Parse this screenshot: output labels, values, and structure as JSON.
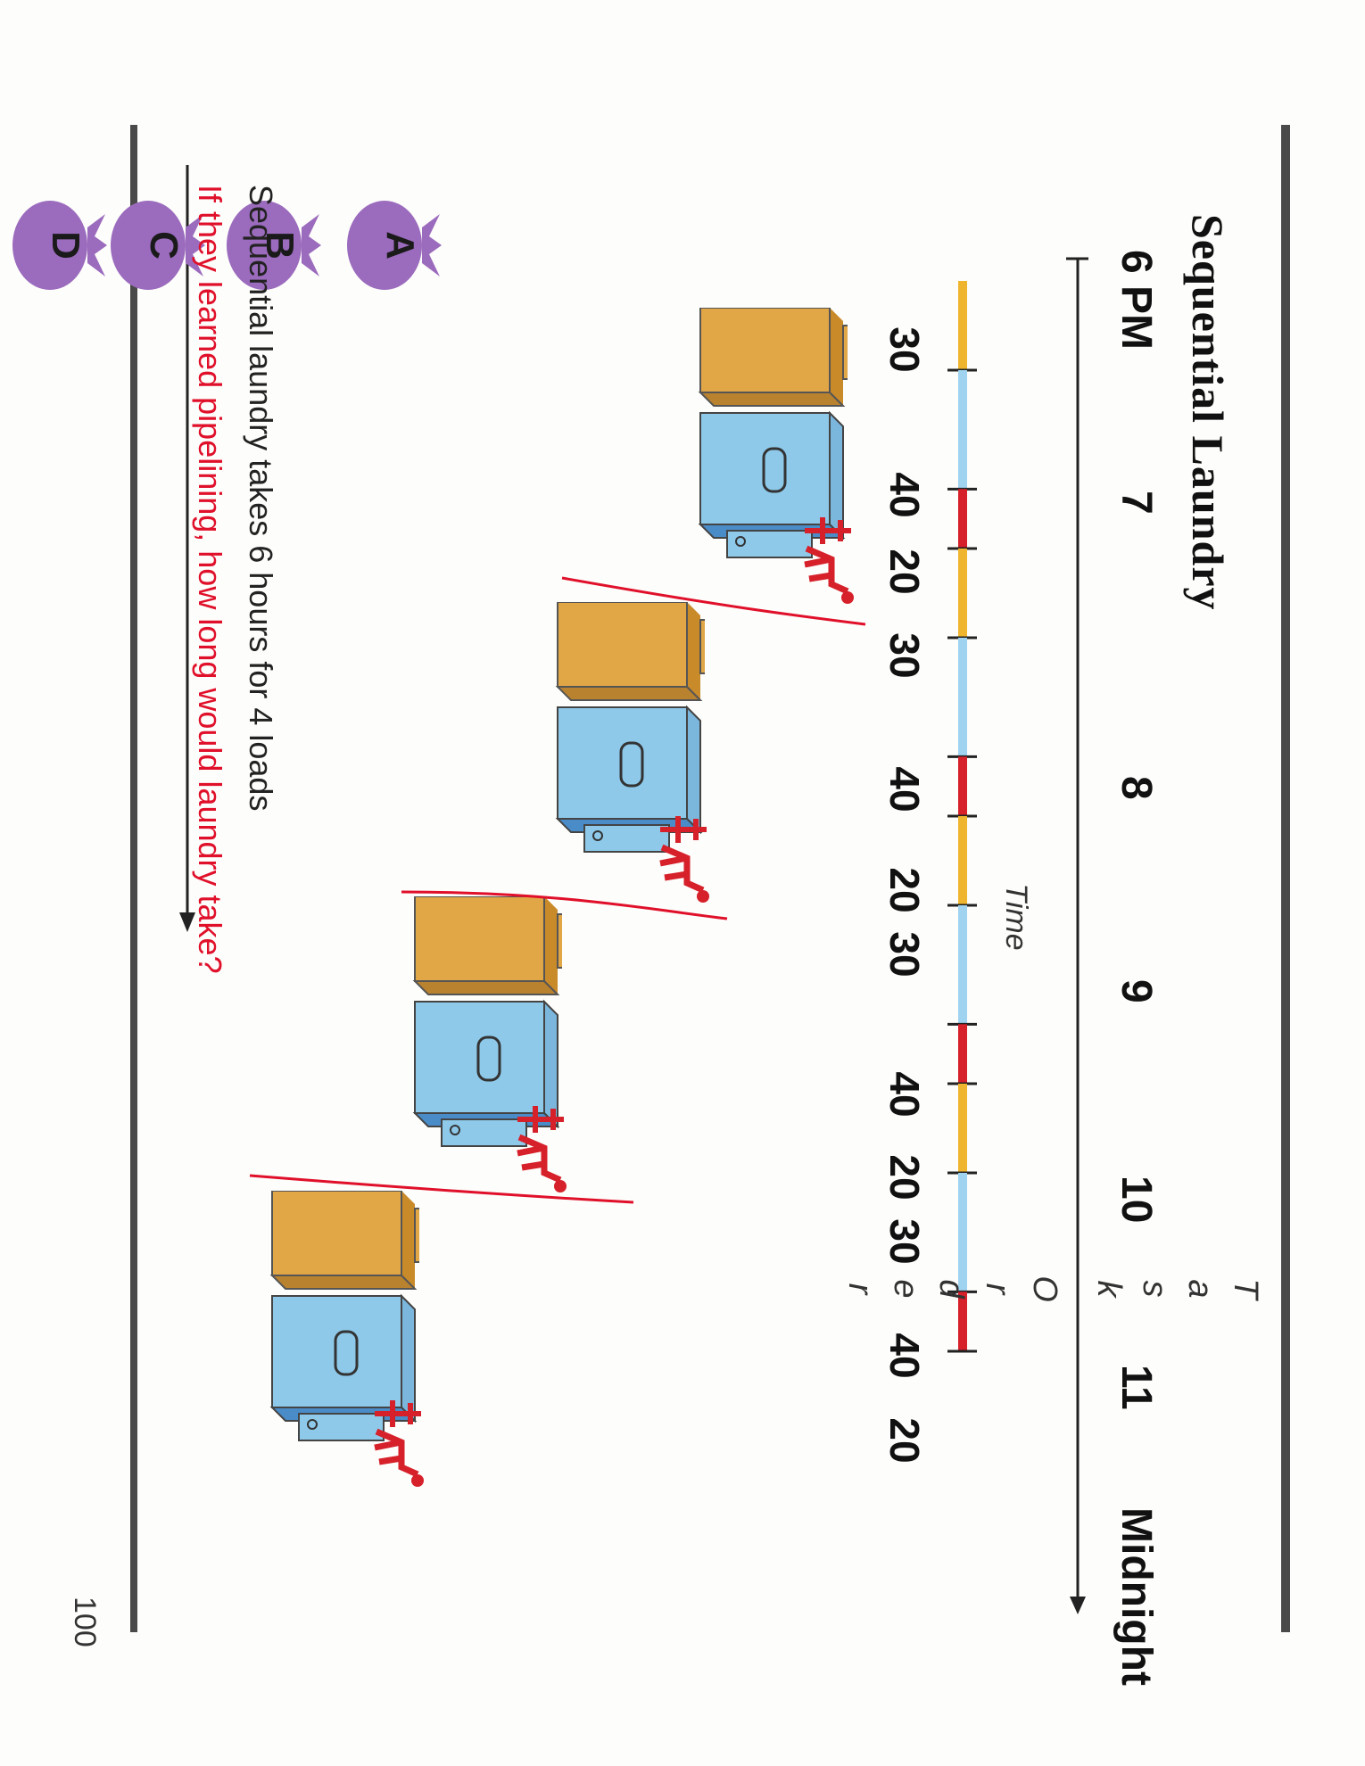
{
  "title": "Sequential Laundry",
  "timeline": {
    "hours": [
      "6 PM",
      "7",
      "8",
      "9",
      "10",
      "11",
      "Midnight"
    ],
    "axis_label": "Time",
    "durations": [
      "30",
      "40",
      "20",
      "30",
      "40",
      "20",
      "30",
      "40",
      "20",
      "30",
      "40",
      "20"
    ]
  },
  "task_order_label": [
    "T",
    "a",
    "s",
    "k",
    "O",
    "r",
    "d",
    "e",
    "r"
  ],
  "loads": [
    "A",
    "B",
    "C",
    "D"
  ],
  "caption": "Sequential laundry takes 6 hours for 4 loads",
  "question": "If they learned pipelining, how long would  laundry take?",
  "page_number": "100",
  "colors": {
    "wash": "#f0b52e",
    "dry": "#9fd3ef",
    "fold": "#d6202a",
    "bag": "#9b6bbd",
    "washer": "#e1a646",
    "dryer": "#8ec9ea",
    "annotation": "#e0102a"
  }
}
